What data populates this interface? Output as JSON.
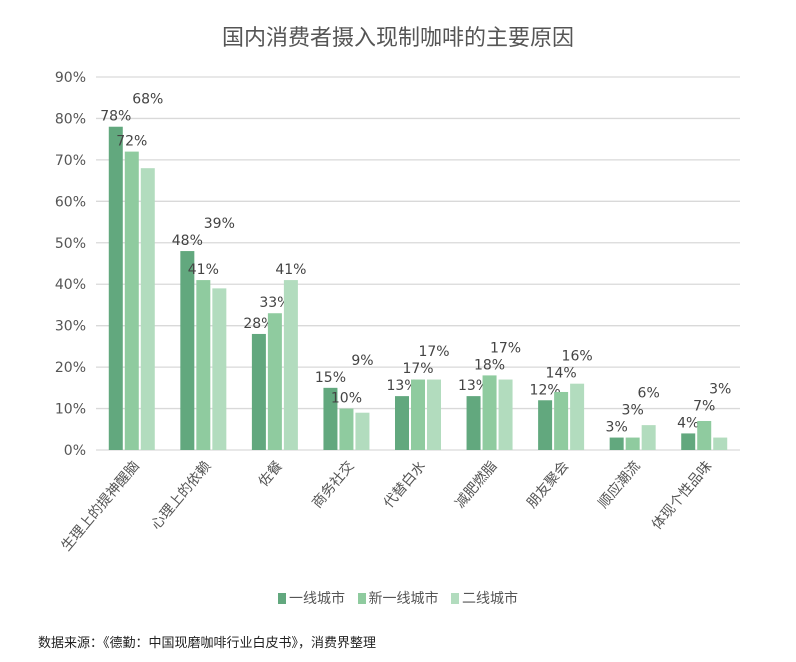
{
  "chart_data": {
    "type": "bar",
    "title": "国内消费者摄入现制咖啡的主要原因",
    "categories": [
      "生理上的提神醒脑",
      "心理上的依赖",
      "佐餐",
      "商务社交",
      "代替白水",
      "减肥燃脂",
      "朋友聚会",
      "顺应潮流",
      "体现个性品味"
    ],
    "series": [
      {
        "name": "一线城市",
        "color": "#62a87e",
        "values": [
          78,
          48,
          28,
          15,
          13,
          13,
          12,
          3,
          4
        ]
      },
      {
        "name": "新一线城市",
        "color": "#8fcb9f",
        "values": [
          72,
          41,
          33,
          10,
          17,
          18,
          14,
          3,
          7
        ]
      },
      {
        "name": "二线城市",
        "color": "#b2dcbe",
        "values": [
          68,
          39,
          41,
          9,
          17,
          17,
          16,
          6,
          3
        ]
      }
    ],
    "yticks": [
      "0%",
      "10%",
      "20%",
      "30%",
      "40%",
      "50%",
      "60%",
      "70%",
      "80%",
      "90%"
    ],
    "ylim": [
      0,
      90
    ],
    "grid": true,
    "legend": "bottom",
    "data_labels": true
  },
  "source": "数据来源：《德勤：中国现磨咖啡行业白皮书》，消费界整理"
}
